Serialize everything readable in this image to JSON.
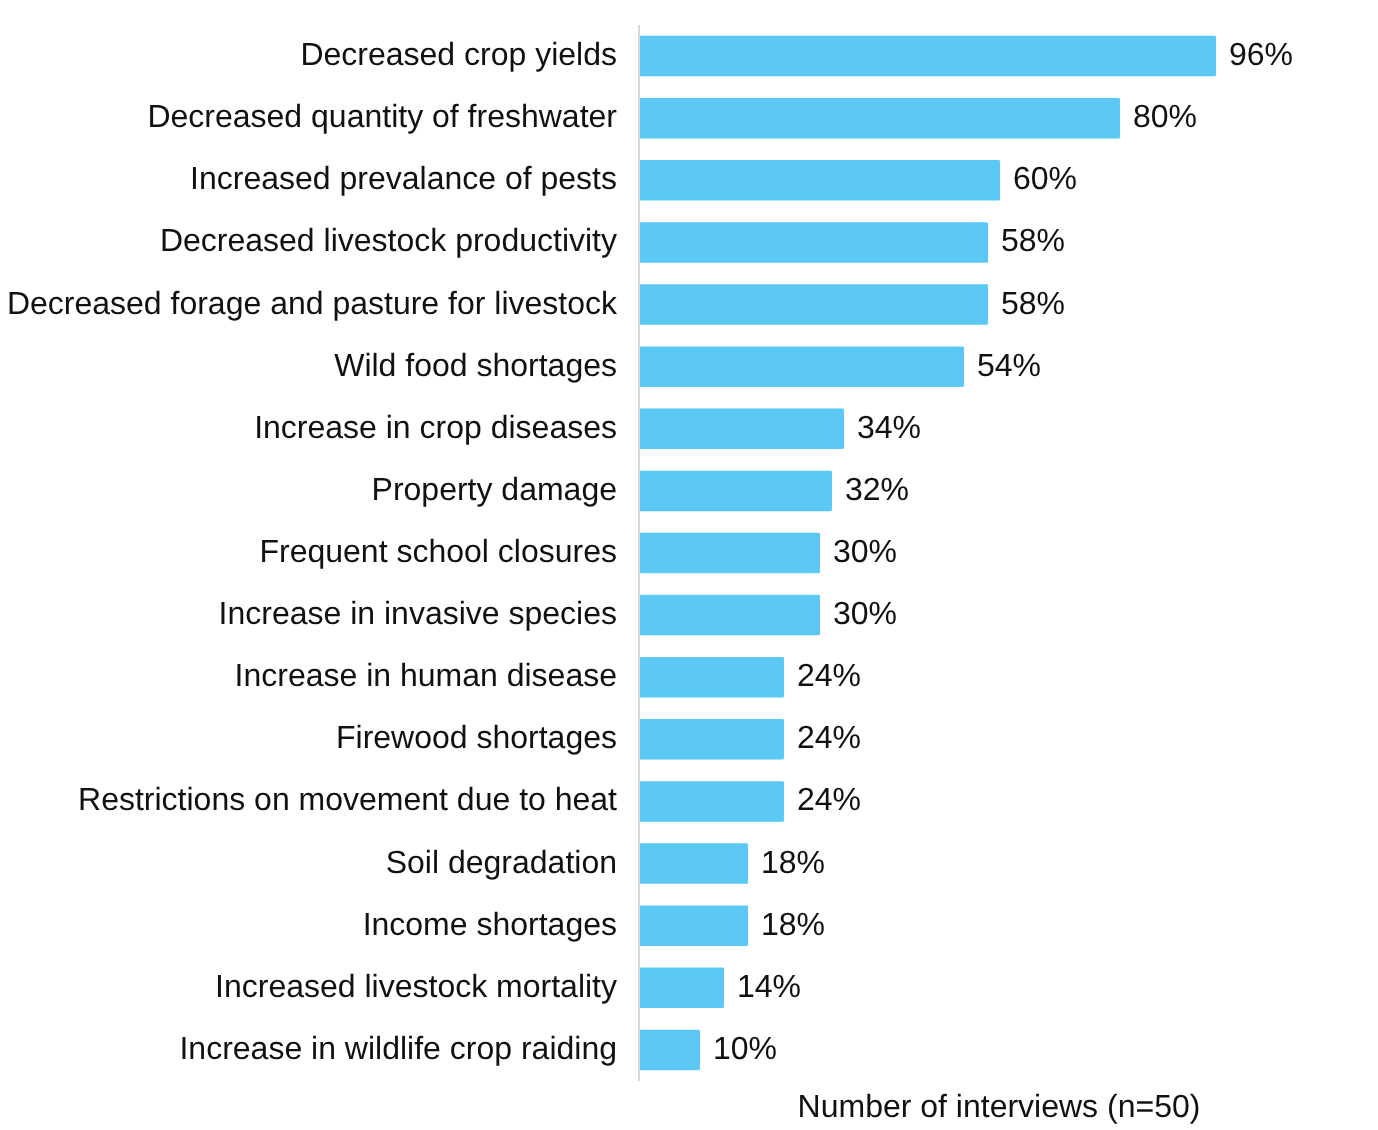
{
  "chart_data": {
    "type": "bar",
    "orientation": "horizontal",
    "xlabel": "Number of interviews (n=50)",
    "categories": [
      "Decreased crop yields",
      "Decreased quantity of freshwater",
      "Increased prevalance of pests",
      "Decreased livestock productivity",
      "Decreased forage and pasture for livestock",
      "Wild food shortages",
      "Increase in crop diseases",
      "Property damage",
      "Frequent school closures",
      "Increase in invasive species",
      "Increase in human disease",
      "Firewood shortages",
      "Restrictions on movement due to heat",
      "Soil degradation",
      "Income shortages",
      "Increased livestock mortality",
      "Increase in wildlife crop raiding"
    ],
    "values": [
      96,
      80,
      60,
      58,
      58,
      54,
      34,
      32,
      30,
      30,
      24,
      24,
      24,
      18,
      18,
      14,
      10
    ],
    "value_labels": [
      "96%",
      "80%",
      "60%",
      "58%",
      "58%",
      "54%",
      "34%",
      "32%",
      "30%",
      "30%",
      "24%",
      "24%",
      "24%",
      "18%",
      "18%",
      "14%",
      "10%"
    ],
    "color": "#5bc8f5",
    "grid": false
  }
}
